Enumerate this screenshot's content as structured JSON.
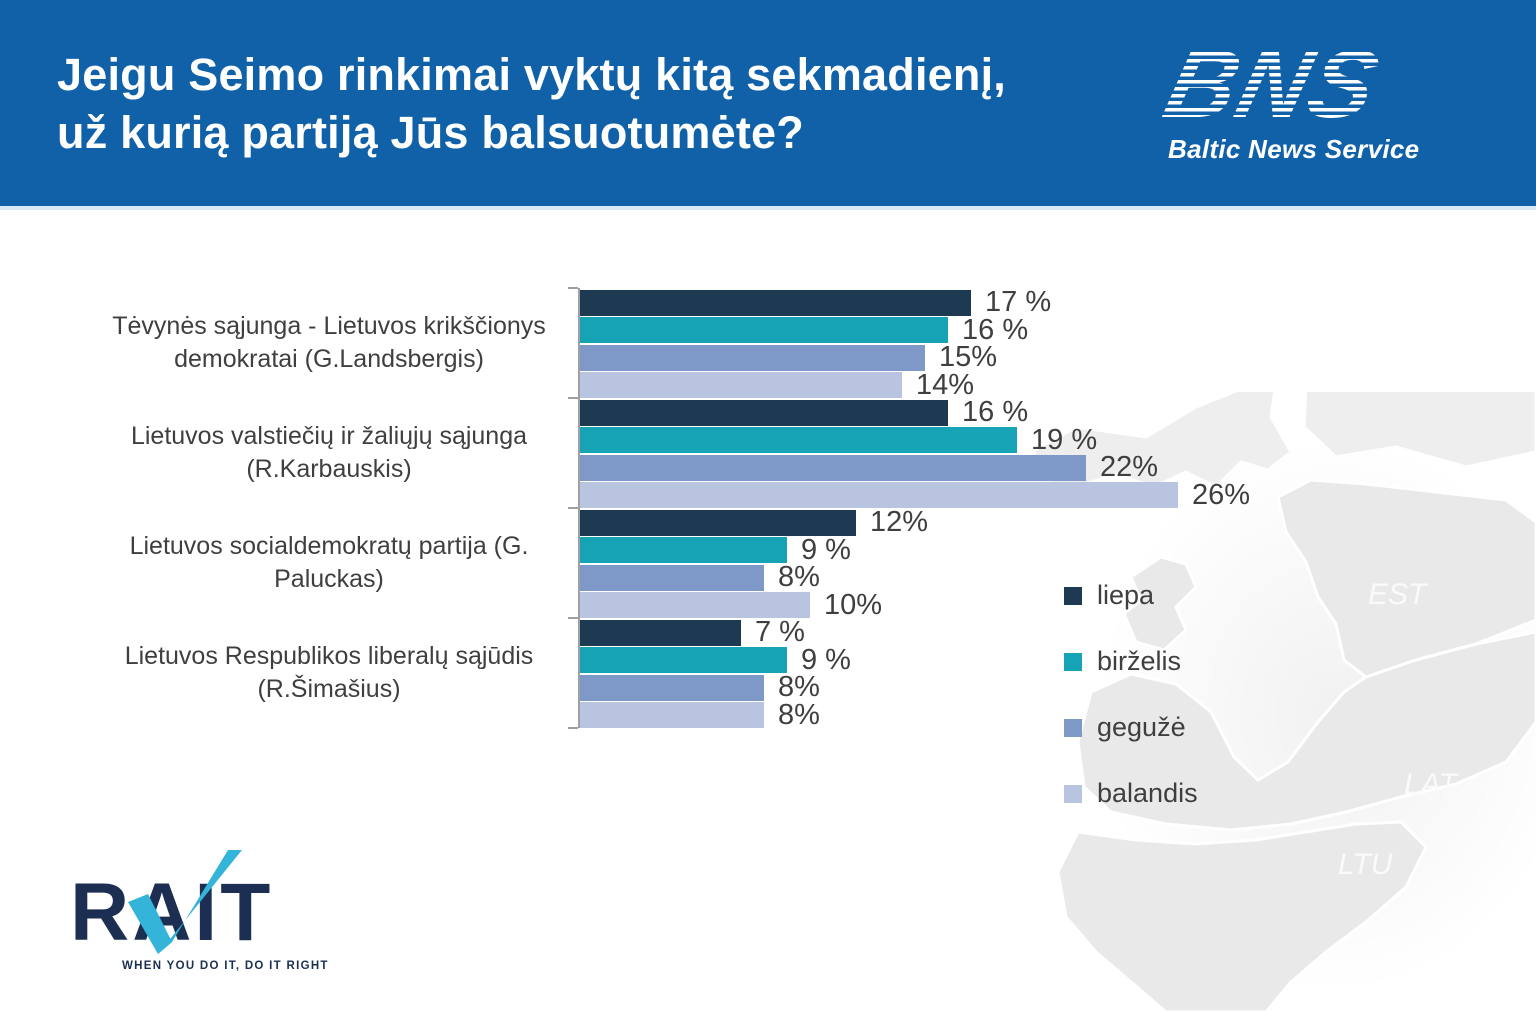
{
  "header": {
    "title": "Jeigu Seimo rinkimai vyktų kitą sekmadienį,\nuž kurią partiją Jūs balsuotumėte?",
    "bns_logo_text": "BNS",
    "bns_logo_subtitle": "Baltic News Service"
  },
  "chart_data": {
    "type": "bar",
    "orientation": "horizontal",
    "title": "",
    "xlabel": "",
    "ylabel": "",
    "xlim": [
      0,
      26
    ],
    "grid": false,
    "legend_position": "right-bottom",
    "value_unit": "%",
    "categories": [
      "Tėvynės sąjunga - Lietuvos krikščionys\ndemokratai (G.Landsbergis)",
      "Lietuvos valstiečių ir žaliųjų sąjunga\n(R.Karbauskis)",
      "Lietuvos socialdemokratų partija (G.\nPaluckas)",
      "Lietuvos Respublikos liberalų sąjūdis\n(R.Šimašius)"
    ],
    "series": [
      {
        "name": "liepa",
        "color": "#1d3a52",
        "values": [
          17,
          16,
          12,
          7
        ],
        "display": [
          "17 %",
          "16 %",
          "12%",
          "7 %"
        ]
      },
      {
        "name": "birželis",
        "color": "#16a3b5",
        "values": [
          16,
          19,
          9,
          9
        ],
        "display": [
          "16 %",
          "19 %",
          "9 %",
          "9 %"
        ]
      },
      {
        "name": "gegužė",
        "color": "#7e99c8",
        "values": [
          15,
          22,
          8,
          8
        ],
        "display": [
          "15%",
          "22%",
          "8%",
          "8%"
        ]
      },
      {
        "name": "balandis",
        "color": "#b9c5e0",
        "values": [
          14,
          26,
          10,
          8
        ],
        "display": [
          "14%",
          "26%",
          "10%",
          "8%"
        ]
      }
    ]
  },
  "map": {
    "labels": [
      "EST",
      "LAT",
      "LTU"
    ]
  },
  "footer": {
    "rait_logo_text": "RAIT",
    "rait_tagline": "WHEN YOU DO IT, DO IT RIGHT"
  },
  "colors": {
    "header_bg": "#1161a9",
    "header_divider": "#d9eaf6",
    "text": "#3f3f3f",
    "axis": "#a0a0a0",
    "rait_navy": "#1c2f52",
    "rait_cyan": "#35b4da",
    "map_land": "#e9e9e9"
  }
}
